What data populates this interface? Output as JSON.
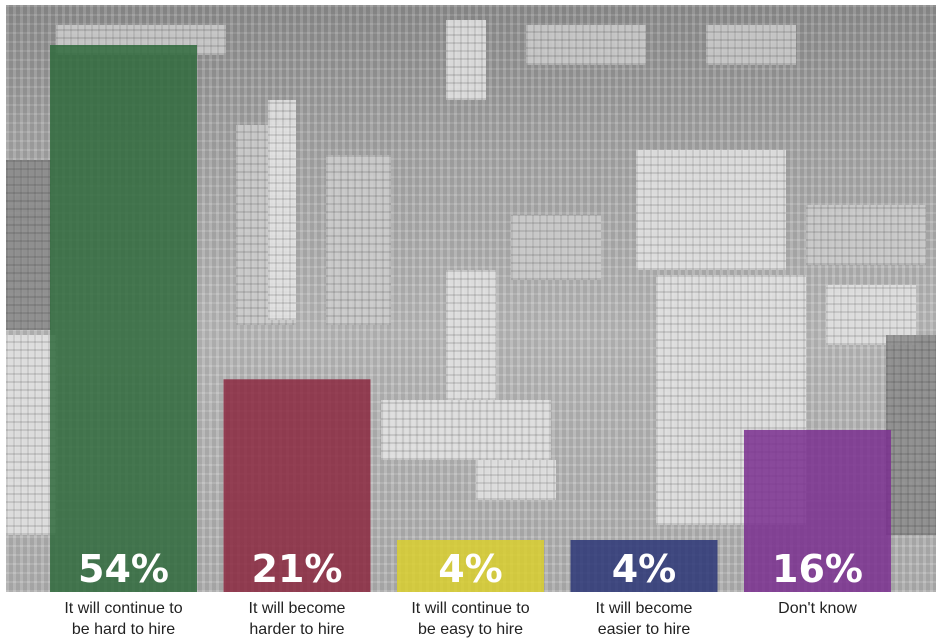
{
  "chart_data": {
    "type": "bar",
    "title": "",
    "xlabel": "",
    "ylabel": "",
    "ylim": [
      0,
      54
    ],
    "categories": [
      [
        "It will continue to",
        "be hard to hire"
      ],
      [
        "It will become",
        "harder to hire"
      ],
      [
        "It will continue to",
        "be easy to hire"
      ],
      [
        "It will become",
        "easier to hire"
      ],
      [
        "Don't know"
      ]
    ],
    "values": [
      54,
      21,
      4,
      4,
      16
    ],
    "value_labels": [
      "54%",
      "21%",
      "4%",
      "4%",
      "16%"
    ],
    "colors": [
      "#2f6a3c",
      "#8b2840",
      "#d9cf2e",
      "#2c3677",
      "#7a2f8f"
    ],
    "bar_opacity": 0.85,
    "background": "grayscale aerial city photo"
  }
}
